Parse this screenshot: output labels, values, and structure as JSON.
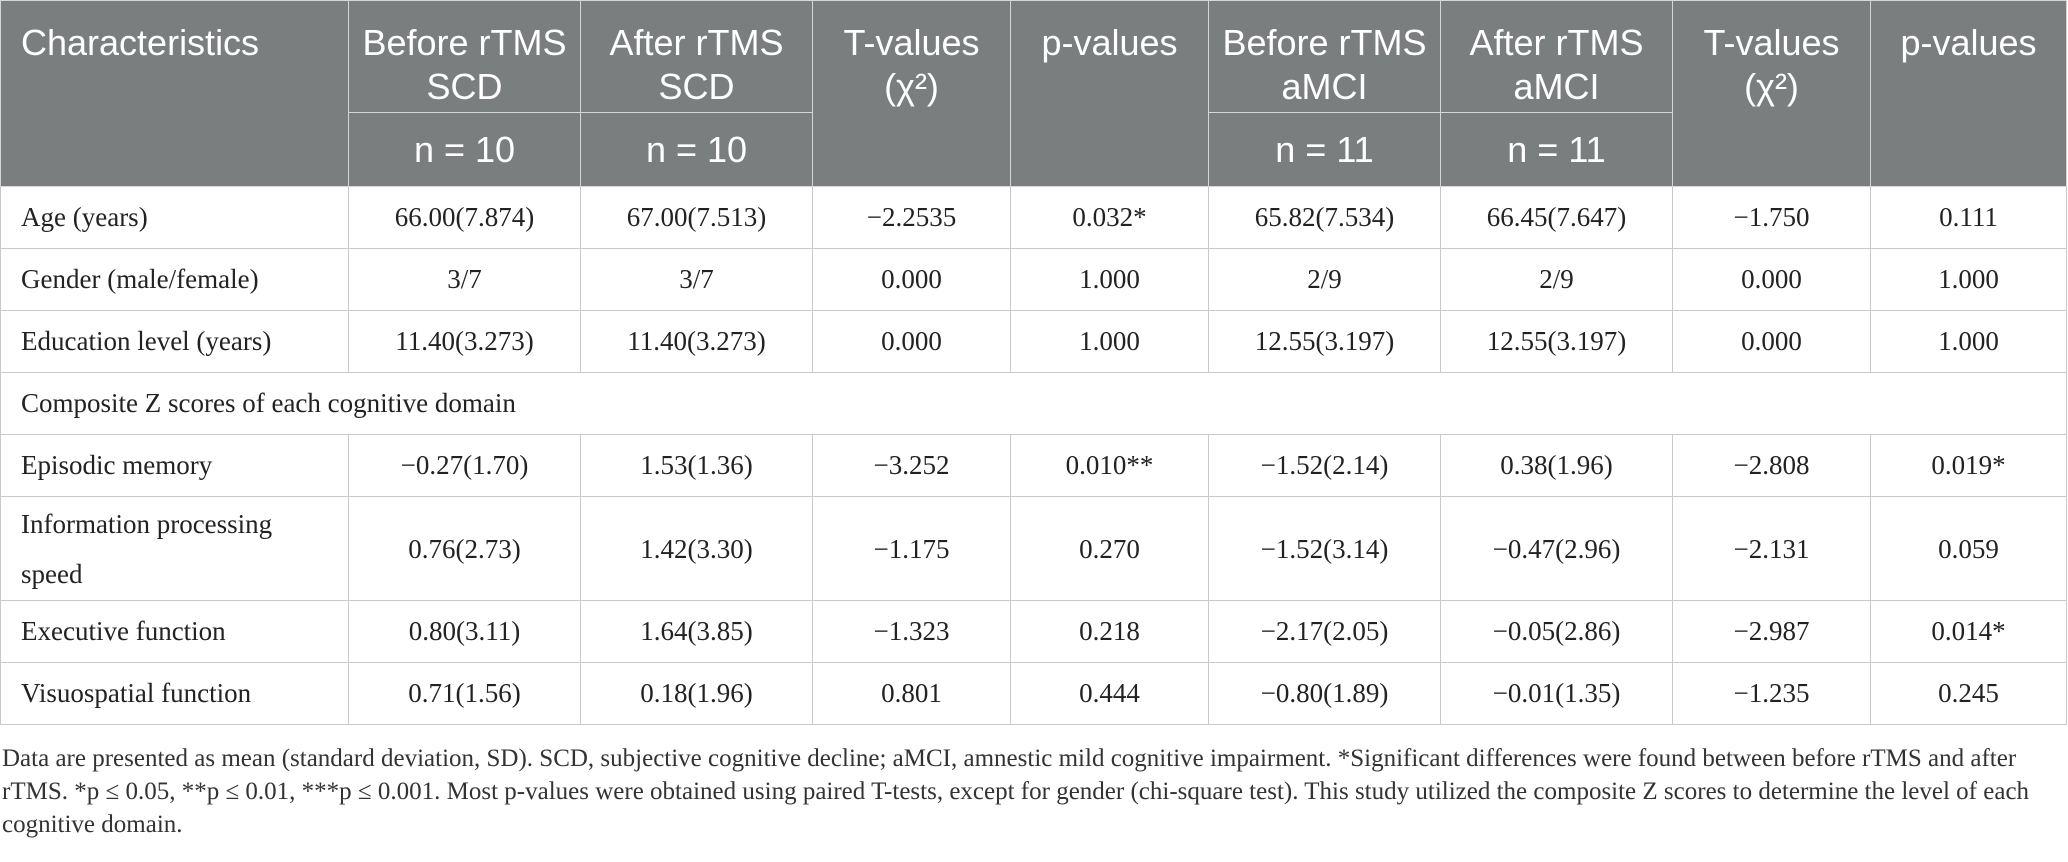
{
  "table": {
    "header": {
      "characteristics": "Characteristics",
      "before_scd": "Before rTMS SCD",
      "after_scd": "After rTMS SCD",
      "t_values": "T-values (χ²)",
      "p_values": "p-values",
      "before_amci": "Before rTMS aMCI",
      "after_amci": "After rTMS aMCI",
      "n_scd_before": "n = 10",
      "n_scd_after": "n = 10",
      "n_amci_before": "n = 11",
      "n_amci_after": "n = 11"
    },
    "rows": [
      {
        "label": "Age (years)",
        "values": [
          "66.00(7.874)",
          "67.00(7.513)",
          "−2.2535",
          "0.032*",
          "65.82(7.534)",
          "66.45(7.647)",
          "−1.750",
          "0.111"
        ]
      },
      {
        "label": "Gender (male/female)",
        "values": [
          "3/7",
          "3/7",
          "0.000",
          "1.000",
          "2/9",
          "2/9",
          "0.000",
          "1.000"
        ]
      },
      {
        "label": "Education level (years)",
        "values": [
          "11.40(3.273)",
          "11.40(3.273)",
          "0.000",
          "1.000",
          "12.55(3.197)",
          "12.55(3.197)",
          "0.000",
          "1.000"
        ]
      },
      {
        "label": "Episodic memory",
        "values": [
          "−0.27(1.70)",
          "1.53(1.36)",
          "−3.252",
          "0.010**",
          "−1.52(2.14)",
          "0.38(1.96)",
          "−2.808",
          "0.019*"
        ]
      },
      {
        "label": "Information processing speed",
        "values": [
          "0.76(2.73)",
          "1.42(3.30)",
          "−1.175",
          "0.270",
          "−1.52(3.14)",
          "−0.47(2.96)",
          "−2.131",
          "0.059"
        ]
      },
      {
        "label": "Executive function",
        "values": [
          "0.80(3.11)",
          "1.64(3.85)",
          "−1.323",
          "0.218",
          "−2.17(2.05)",
          "−0.05(2.86)",
          "−2.987",
          "0.014*"
        ]
      },
      {
        "label": "Visuospatial function",
        "values": [
          "0.71(1.56)",
          "0.18(1.96)",
          "0.801",
          "0.444",
          "−0.80(1.89)",
          "−0.01(1.35)",
          "−1.235",
          "0.245"
        ]
      }
    ],
    "section_label": "Composite Z scores of each cognitive domain"
  },
  "footnote": "Data are presented as mean (standard deviation, SD). SCD, subjective cognitive decline; aMCI, amnestic mild cognitive impairment. *Significant differences were found between before rTMS and after rTMS. *p ≤ 0.05, **p ≤ 0.01, ***p ≤ 0.001. Most p-values were obtained using paired T-tests, except for gender (chi-square test). This study utilized the composite Z scores to determine the level of each cognitive domain."
}
